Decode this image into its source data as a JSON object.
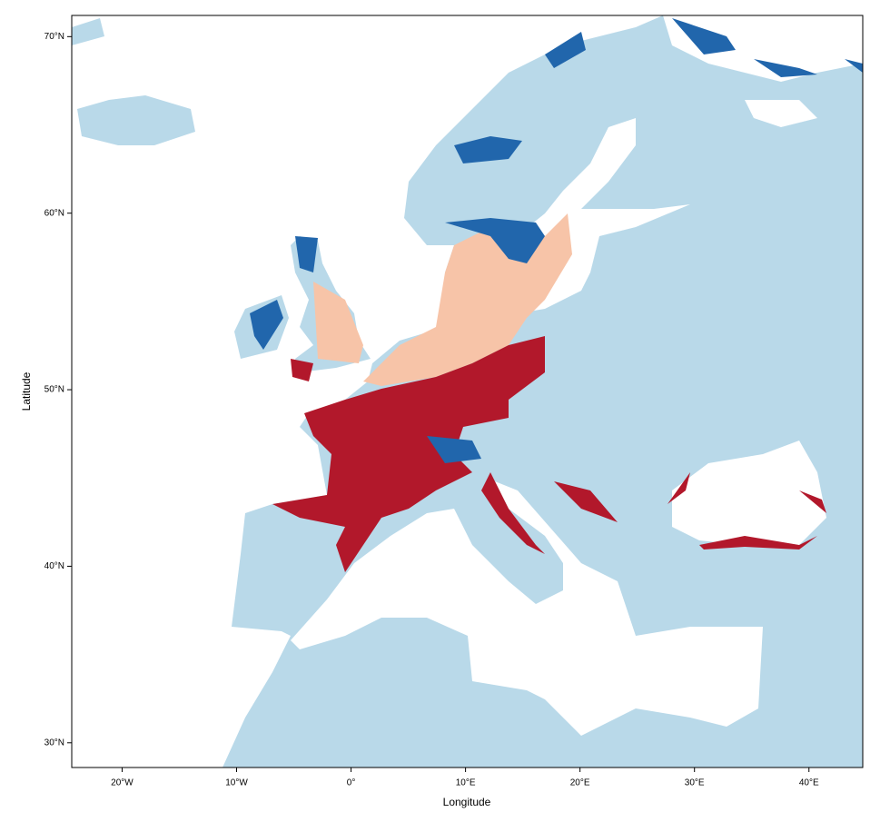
{
  "chart_data": {
    "type": "map",
    "xlabel": "Longitude",
    "ylabel": "Latitude",
    "xlim": [
      -24.4,
      44.7
    ],
    "ylim": [
      28.6,
      71.2
    ],
    "xticks": [
      {
        "value": -20,
        "label": "20°W"
      },
      {
        "value": -10,
        "label": "10°W"
      },
      {
        "value": 0,
        "label": "0°"
      },
      {
        "value": 10,
        "label": "10°E"
      },
      {
        "value": 20,
        "label": "20°E"
      },
      {
        "value": 30,
        "label": "30°E"
      },
      {
        "value": 40,
        "label": "40°E"
      }
    ],
    "yticks": [
      {
        "value": 30,
        "label": "30°N"
      },
      {
        "value": 40,
        "label": "40°N"
      },
      {
        "value": 50,
        "label": "50°N"
      },
      {
        "value": 60,
        "label": "60°N"
      },
      {
        "value": 70,
        "label": "70°N"
      }
    ]
  }
}
